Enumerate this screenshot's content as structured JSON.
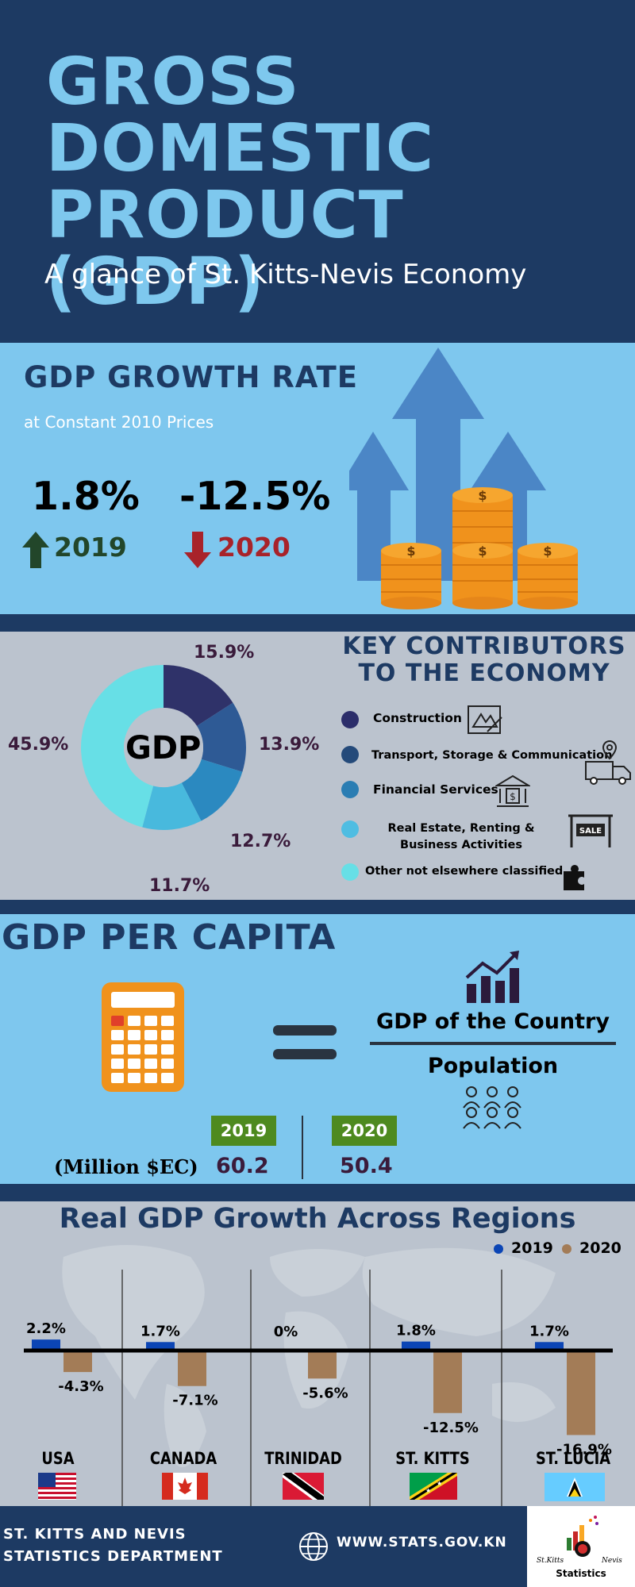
{
  "header": {
    "title_lines": [
      "GROSS",
      "DOMESTIC",
      "PRODUCT (GDP)"
    ],
    "subtitle": "A glance of St. Kitts-Nevis Economy"
  },
  "growth": {
    "title": "GDP GROWTH RATE",
    "subtitle": "at Constant 2010 Prices",
    "items": [
      {
        "value": "1.8%",
        "year": "2019",
        "direction": "up",
        "color": "#22462a"
      },
      {
        "value": "-12.5%",
        "year": "2020",
        "direction": "down",
        "color": "#a8232a"
      }
    ]
  },
  "contributors": {
    "title": "KEY CONTRIBUTORS TO THE ECONOMY",
    "center_label": "GDP",
    "legend": [
      {
        "label": "Construction",
        "color": "#2b2d6a",
        "icon": "blueprint-icon"
      },
      {
        "label": "Transport, Storage & Communication",
        "color": "#244a7a",
        "icon": "delivery-truck-icon"
      },
      {
        "label": "Financial Services",
        "color": "#2a7db3",
        "icon": "bank-icon"
      },
      {
        "label": "Real Estate, Renting & Business Activities",
        "color": "#4fbde2",
        "icon": "sale-sign-icon"
      },
      {
        "label": "Other not elsewhere classified",
        "color": "#67dfe6",
        "icon": "puzzle-icon"
      }
    ],
    "percent_labels": [
      "15.9%",
      "13.9%",
      "12.7%",
      "11.7%",
      "45.9%"
    ]
  },
  "chart_data": [
    {
      "type": "pie",
      "title": "KEY CONTRIBUTORS TO THE ECONOMY",
      "categories": [
        "Construction",
        "Transport, Storage & Communication",
        "Financial Services",
        "Real Estate, Renting & Business Activities",
        "Other not elsewhere classified"
      ],
      "values": [
        15.9,
        13.9,
        12.7,
        11.7,
        45.9
      ],
      "colors": [
        "#2f3269",
        "#2e5a95",
        "#2b89c0",
        "#48b9dd",
        "#67dfe6"
      ]
    },
    {
      "type": "bar",
      "title": "Real GDP Growth Across Regions",
      "categories": [
        "USA",
        "CANADA",
        "TRINIDAD",
        "ST. KITTS",
        "ST. LUCIA"
      ],
      "series": [
        {
          "name": "2019",
          "values": [
            2.2,
            1.7,
            0,
            1.8,
            1.7
          ],
          "labels": [
            "2.2%",
            "1.7%",
            "0%",
            "1.8%",
            "1.7%"
          ],
          "color": "#0b45b5"
        },
        {
          "name": "2020",
          "values": [
            -4.3,
            -7.1,
            -5.6,
            -12.5,
            -16.9
          ],
          "labels": [
            "-4.3%",
            "-7.1%",
            "-5.6%",
            "-12.5%",
            "-16.9%"
          ],
          "color": "#a37c57"
        }
      ]
    }
  ],
  "capita": {
    "title": "GDP PER CAPITA",
    "numerator": "GDP of the Country",
    "denominator": "Population",
    "unit_label": "(Million $EC)",
    "years": [
      {
        "year": "2019",
        "value": "60.2"
      },
      {
        "year": "2020",
        "value": "50.4"
      }
    ]
  },
  "regions": {
    "title": "Real GDP Growth Across Regions",
    "legend": [
      {
        "label": "2019",
        "color": "#0b45b5"
      },
      {
        "label": "2020",
        "color": "#a37c57"
      }
    ]
  },
  "footer": {
    "org_line1": "ST. KITTS AND NEVIS",
    "org_line2": "STATISTICS DEPARTMENT",
    "website": "WWW.STATS.GOV.KN",
    "logo_text_left": "St.Kitts",
    "logo_text_right": "Nevis",
    "logo_text_bottom": "Statistics"
  }
}
